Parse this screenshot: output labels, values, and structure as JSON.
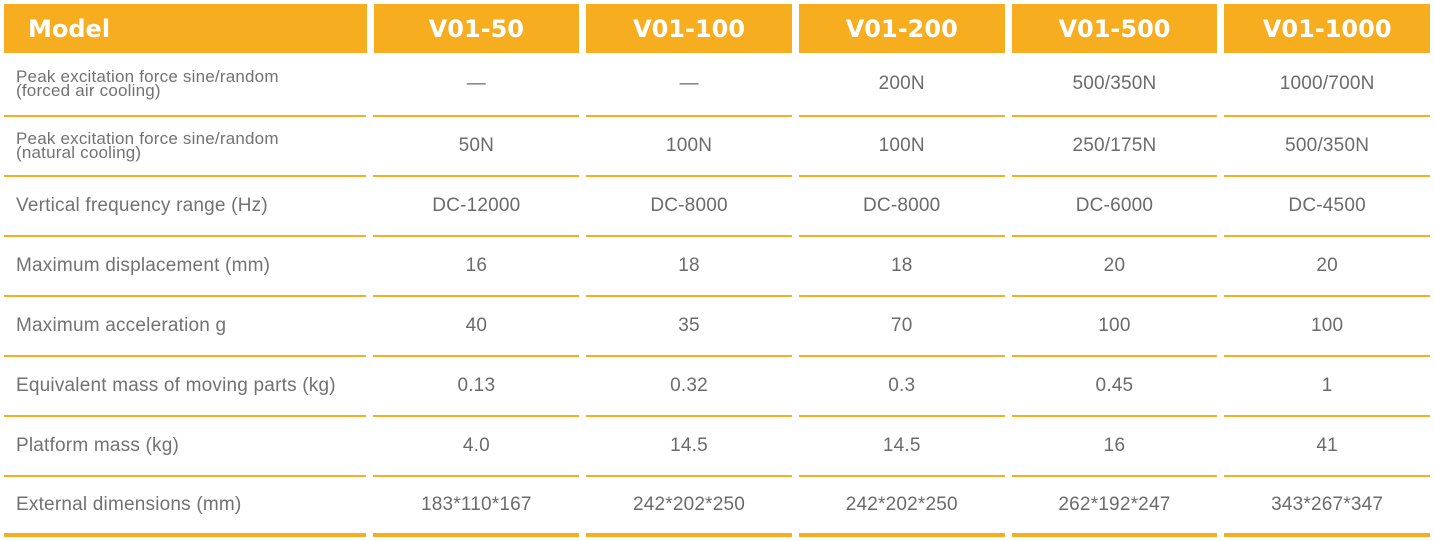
{
  "table": {
    "header": {
      "label": "Model",
      "models": [
        "V01-50",
        "V01-100",
        "V01-200",
        "V01-500",
        "V01-1000"
      ]
    },
    "rows": [
      {
        "label_line1": "Peak excitation force sine/random",
        "label_line2": "(forced air cooling)",
        "values": [
          "—",
          "—",
          "200N",
          "500/350N",
          "1000/700N"
        ]
      },
      {
        "label_line1": "Peak excitation force sine/random",
        "label_line2": "(natural cooling)",
        "values": [
          "50N",
          "100N",
          "100N",
          "250/175N",
          "500/350N"
        ]
      },
      {
        "label": "Vertical frequency range (Hz)",
        "values": [
          "DC-12000",
          "DC-8000",
          "DC-8000",
          "DC-6000",
          "DC-4500"
        ]
      },
      {
        "label": "Maximum displacement (mm)",
        "values": [
          "16",
          "18",
          "18",
          "20",
          "20"
        ]
      },
      {
        "label": "Maximum acceleration g",
        "values": [
          "40",
          "35",
          "70",
          "100",
          "100"
        ]
      },
      {
        "label": "Equivalent mass of moving parts (kg)",
        "values": [
          "0.13",
          "0.32",
          "0.3",
          "0.45",
          "1"
        ]
      },
      {
        "label": "Platform mass (kg)",
        "values": [
          "4.0",
          "14.5",
          "14.5",
          "16",
          "41"
        ]
      },
      {
        "label": "External dimensions (mm)",
        "values": [
          "183*110*167",
          "242*202*250",
          "242*202*250",
          "262*192*247",
          "343*267*347"
        ]
      }
    ]
  },
  "colors": {
    "accent": "#f6ad1f",
    "text": "#6b6b6b",
    "header_text": "#ffffff"
  }
}
